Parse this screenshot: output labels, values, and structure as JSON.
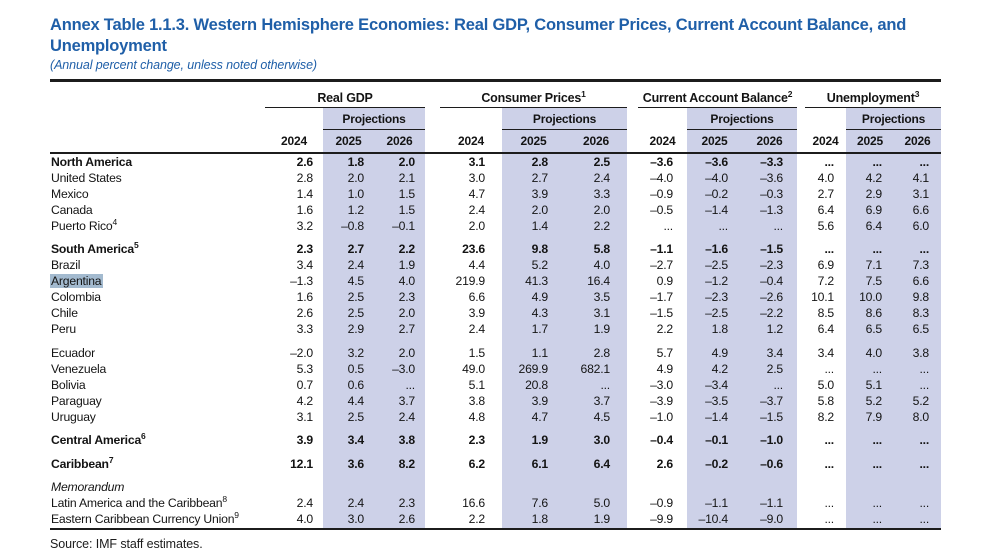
{
  "page": {
    "title": "Annex Table 1.1.3. Western Hemisphere Economies: Real GDP, Consumer Prices, Current Account Balance, and Unemployment",
    "subtitle": "(Annual percent change, unless noted otherwise)",
    "source": "Source: IMF staff estimates."
  },
  "colors": {
    "title_blue": "#1f5fa8",
    "projection_band": "#cdd1e8",
    "selection_highlight": "#a3bacf"
  },
  "table": {
    "projections_label": "Projections",
    "years": [
      "2024",
      "2025",
      "2026"
    ],
    "groups": [
      {
        "label": "Real GDP",
        "sup": ""
      },
      {
        "label": "Consumer Prices",
        "sup": "1"
      },
      {
        "label": "Current Account Balance",
        "sup": "2"
      },
      {
        "label": "Unemployment",
        "sup": "3"
      }
    ],
    "rows": [
      {
        "label": "North America",
        "sup": "",
        "bold": true,
        "gap": false,
        "memo": false,
        "highlight": false,
        "values": [
          "2.6",
          "1.8",
          "2.0",
          "3.1",
          "2.8",
          "2.5",
          "–3.6",
          "–3.6",
          "–3.3",
          "...",
          "...",
          "..."
        ]
      },
      {
        "label": "United States",
        "sup": "",
        "bold": false,
        "gap": false,
        "memo": false,
        "highlight": false,
        "values": [
          "2.8",
          "2.0",
          "2.1",
          "3.0",
          "2.7",
          "2.4",
          "–4.0",
          "–4.0",
          "–3.6",
          "4.0",
          "4.2",
          "4.1"
        ]
      },
      {
        "label": "Mexico",
        "sup": "",
        "bold": false,
        "gap": false,
        "memo": false,
        "highlight": false,
        "values": [
          "1.4",
          "1.0",
          "1.5",
          "4.7",
          "3.9",
          "3.3",
          "–0.9",
          "–0.2",
          "–0.3",
          "2.7",
          "2.9",
          "3.1"
        ]
      },
      {
        "label": "Canada",
        "sup": "",
        "bold": false,
        "gap": false,
        "memo": false,
        "highlight": false,
        "values": [
          "1.6",
          "1.2",
          "1.5",
          "2.4",
          "2.0",
          "2.0",
          "–0.5",
          "–1.4",
          "–1.3",
          "6.4",
          "6.9",
          "6.6"
        ]
      },
      {
        "label": "Puerto Rico",
        "sup": "4",
        "bold": false,
        "gap": false,
        "memo": false,
        "highlight": false,
        "values": [
          "3.2",
          "–0.8",
          "–0.1",
          "2.0",
          "1.4",
          "2.2",
          "...",
          "...",
          "...",
          "5.6",
          "6.4",
          "6.0"
        ]
      },
      {
        "label": "South America",
        "sup": "5",
        "bold": true,
        "gap": true,
        "memo": false,
        "highlight": false,
        "values": [
          "2.3",
          "2.7",
          "2.2",
          "23.6",
          "9.8",
          "5.8",
          "–1.1",
          "–1.6",
          "–1.5",
          "...",
          "...",
          "..."
        ]
      },
      {
        "label": "Brazil",
        "sup": "",
        "bold": false,
        "gap": false,
        "memo": false,
        "highlight": false,
        "values": [
          "3.4",
          "2.4",
          "1.9",
          "4.4",
          "5.2",
          "4.0",
          "–2.7",
          "–2.5",
          "–2.3",
          "6.9",
          "7.1",
          "7.3"
        ]
      },
      {
        "label": "Argentina",
        "sup": "",
        "bold": false,
        "gap": false,
        "memo": false,
        "highlight": true,
        "values": [
          "–1.3",
          "4.5",
          "4.0",
          "219.9",
          "41.3",
          "16.4",
          "0.9",
          "–1.2",
          "–0.4",
          "7.2",
          "7.5",
          "6.6"
        ]
      },
      {
        "label": "Colombia",
        "sup": "",
        "bold": false,
        "gap": false,
        "memo": false,
        "highlight": false,
        "values": [
          "1.6",
          "2.5",
          "2.3",
          "6.6",
          "4.9",
          "3.5",
          "–1.7",
          "–2.3",
          "–2.6",
          "10.1",
          "10.0",
          "9.8"
        ]
      },
      {
        "label": "Chile",
        "sup": "",
        "bold": false,
        "gap": false,
        "memo": false,
        "highlight": false,
        "values": [
          "2.6",
          "2.5",
          "2.0",
          "3.9",
          "4.3",
          "3.1",
          "–1.5",
          "–2.5",
          "–2.2",
          "8.5",
          "8.6",
          "8.3"
        ]
      },
      {
        "label": "Peru",
        "sup": "",
        "bold": false,
        "gap": false,
        "memo": false,
        "highlight": false,
        "values": [
          "3.3",
          "2.9",
          "2.7",
          "2.4",
          "1.7",
          "1.9",
          "2.2",
          "1.8",
          "1.2",
          "6.4",
          "6.5",
          "6.5"
        ]
      },
      {
        "label": "Ecuador",
        "sup": "",
        "bold": false,
        "gap": true,
        "memo": false,
        "highlight": false,
        "values": [
          "–2.0",
          "3.2",
          "2.0",
          "1.5",
          "1.1",
          "2.8",
          "5.7",
          "4.9",
          "3.4",
          "3.4",
          "4.0",
          "3.8"
        ]
      },
      {
        "label": "Venezuela",
        "sup": "",
        "bold": false,
        "gap": false,
        "memo": false,
        "highlight": false,
        "values": [
          "5.3",
          "0.5",
          "–3.0",
          "49.0",
          "269.9",
          "682.1",
          "4.9",
          "4.2",
          "2.5",
          "...",
          "...",
          "..."
        ]
      },
      {
        "label": "Bolivia",
        "sup": "",
        "bold": false,
        "gap": false,
        "memo": false,
        "highlight": false,
        "values": [
          "0.7",
          "0.6",
          "...",
          "5.1",
          "20.8",
          "...",
          "–3.0",
          "–3.4",
          "...",
          "5.0",
          "5.1",
          "..."
        ]
      },
      {
        "label": "Paraguay",
        "sup": "",
        "bold": false,
        "gap": false,
        "memo": false,
        "highlight": false,
        "values": [
          "4.2",
          "4.4",
          "3.7",
          "3.8",
          "3.9",
          "3.7",
          "–3.9",
          "–3.5",
          "–3.7",
          "5.8",
          "5.2",
          "5.2"
        ]
      },
      {
        "label": "Uruguay",
        "sup": "",
        "bold": false,
        "gap": false,
        "memo": false,
        "highlight": false,
        "values": [
          "3.1",
          "2.5",
          "2.4",
          "4.8",
          "4.7",
          "4.5",
          "–1.0",
          "–1.4",
          "–1.5",
          "8.2",
          "7.9",
          "8.0"
        ]
      },
      {
        "label": "Central America",
        "sup": "6",
        "bold": true,
        "gap": true,
        "memo": false,
        "highlight": false,
        "values": [
          "3.9",
          "3.4",
          "3.8",
          "2.3",
          "1.9",
          "3.0",
          "–0.4",
          "–0.1",
          "–1.0",
          "...",
          "...",
          "..."
        ]
      },
      {
        "label": "Caribbean",
        "sup": "7",
        "bold": true,
        "gap": true,
        "memo": false,
        "highlight": false,
        "values": [
          "12.1",
          "3.6",
          "8.2",
          "6.2",
          "6.1",
          "6.4",
          "2.6",
          "–0.2",
          "–0.6",
          "...",
          "...",
          "..."
        ]
      },
      {
        "label": "Memorandum",
        "sup": "",
        "bold": false,
        "gap": true,
        "memo": true,
        "highlight": false,
        "values": [
          "",
          "",
          "",
          "",
          "",
          "",
          "",
          "",
          "",
          "",
          "",
          ""
        ]
      },
      {
        "label": "Latin America and the Caribbean",
        "sup": "8",
        "bold": false,
        "gap": false,
        "memo": false,
        "highlight": false,
        "values": [
          "2.4",
          "2.4",
          "2.3",
          "16.6",
          "7.6",
          "5.0",
          "–0.9",
          "–1.1",
          "–1.1",
          "...",
          "...",
          "..."
        ]
      },
      {
        "label": "Eastern Caribbean Currency Union",
        "sup": "9",
        "bold": false,
        "gap": false,
        "memo": false,
        "highlight": false,
        "values": [
          "4.0",
          "3.0",
          "2.6",
          "2.2",
          "1.8",
          "1.9",
          "–9.9",
          "–10.4",
          "–9.0",
          "...",
          "...",
          "..."
        ]
      }
    ]
  }
}
